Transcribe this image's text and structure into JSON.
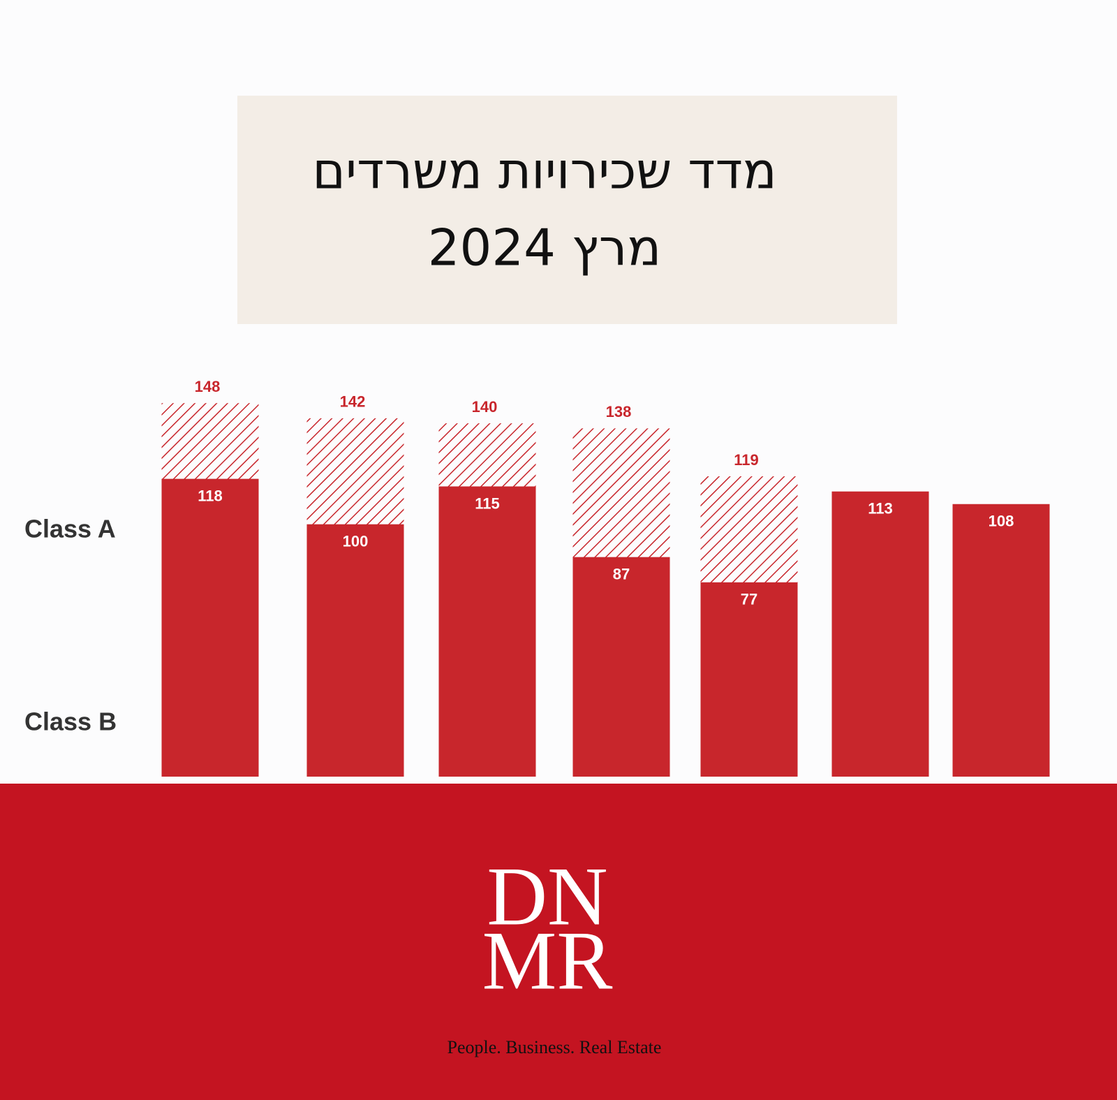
{
  "chart_data": {
    "type": "bar",
    "title": "מדד שכירויות משרדים",
    "subtitle": "מרץ 2024",
    "categories": [
      null,
      null,
      null,
      null,
      null,
      null,
      null
    ],
    "series": [
      {
        "name": "Class A",
        "color": "#c8262c",
        "hatch": true,
        "values": [
          148,
          142,
          140,
          138,
          119,
          null,
          null
        ]
      },
      {
        "name": "Class B",
        "color": "#c8262c",
        "hatch": false,
        "values": [
          118,
          100,
          115,
          87,
          77,
          113,
          108
        ]
      }
    ],
    "ylim": [
      0,
      150
    ]
  },
  "footer": {
    "logo_top": "DN",
    "logo_bottom": "MR",
    "tagline": "People. Business. Real Estate"
  }
}
